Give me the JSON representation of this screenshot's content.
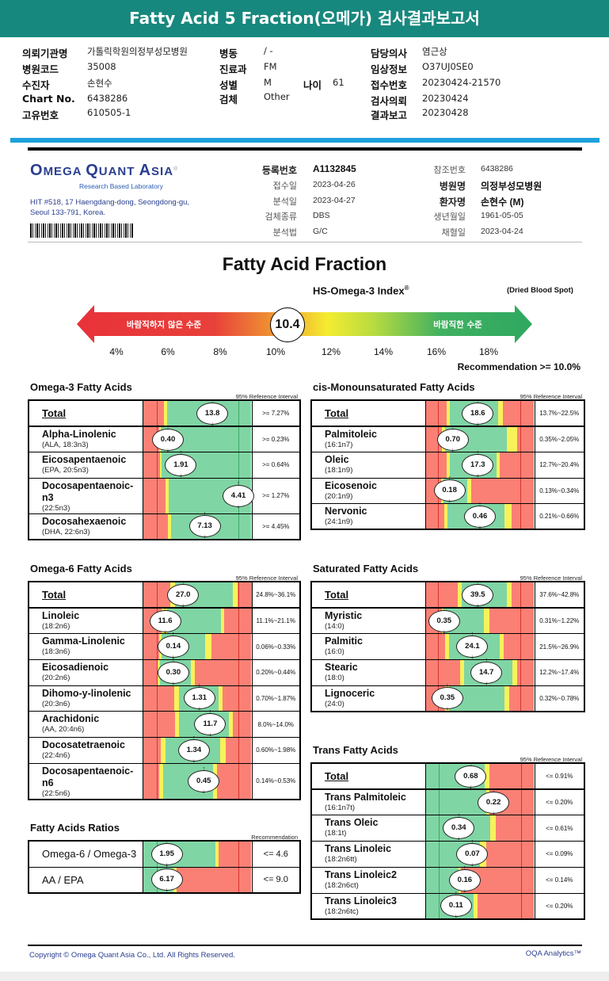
{
  "title": "Fatty Acid 5 Fraction(오메가) 검사결과보고서",
  "patient": {
    "col1": [
      [
        "의뢰기관명",
        "가톨릭학원의정부성모병원"
      ],
      [
        "병원코드",
        "35008"
      ],
      [
        "수진자",
        "손현수"
      ],
      [
        "Chart No.",
        "6438286"
      ],
      [
        "고유번호",
        "610505-1"
      ]
    ],
    "col2": [
      [
        "병동",
        "/ -"
      ],
      [
        "진료과",
        "FM"
      ],
      [
        "성별",
        "M"
      ],
      [
        "검체",
        "Other"
      ]
    ],
    "age": [
      "나이",
      "61"
    ],
    "col3": [
      [
        "담당의사",
        "염근상"
      ],
      [
        "임상정보",
        "O37UJ0SE0"
      ],
      [
        "접수번호",
        "20230424-21570"
      ],
      [
        "검사의뢰",
        "20230424"
      ],
      [
        "결과보고",
        "20230428"
      ]
    ]
  },
  "lab": {
    "logo": "OMEGA QUANT ASIA",
    "logo_sub": "Research Based Laboratory",
    "address1": "HIT #518, 17 Haengdang-dong, Seongdong-gu,",
    "address2": "Seoul 133-791, Korea."
  },
  "report_info": {
    "left": [
      [
        "등록번호",
        "A1132845"
      ],
      [
        "접수일",
        "2023-04-26"
      ],
      [
        "분석일",
        "2023-04-27"
      ],
      [
        "검체종류",
        "DBS"
      ],
      [
        "분석법",
        "G/C"
      ]
    ],
    "right": [
      [
        "참조번호",
        "6438286"
      ],
      [
        "병원명",
        "의정부성모병원"
      ],
      [
        "환자명",
        "손현수 (M)"
      ],
      [
        "생년월일",
        "1961-05-05"
      ],
      [
        "채혈일",
        "2023-04-24"
      ]
    ]
  },
  "fraction_title": "Fatty Acid Fraction",
  "index": {
    "title": "HS-Omega-3 Index",
    "sup": "®",
    "sample": "(Dried Blood Spot)",
    "value": "10.4",
    "left_label": "바람직하지 않은 수준",
    "right_label": "바람직한 수준",
    "ticks": [
      "4%",
      "6%",
      "8%",
      "10%",
      "12%",
      "14%",
      "16%",
      "18%"
    ],
    "recommendation": "Recommendation  >= 10.0%"
  },
  "colors": {
    "header": "#17887e",
    "red": "#fa8075",
    "yellow": "#f7f25a",
    "green": "#80d5a4"
  },
  "sections": [
    {
      "title": "Omega-3 Fatty Acids",
      "ref_label": "95% Reference Interval",
      "rows": [
        {
          "name": "Total",
          "sub": "",
          "value": "13.8",
          "ref": ">= 7.27%"
        },
        {
          "name": "Alpha-Linolenic",
          "sub": "(ALA, 18:3n3)",
          "value": "0.40",
          "ref": ">= 0.23%"
        },
        {
          "name": "Eicosapentaenoic",
          "sub": "(EPA, 20:5n3)",
          "value": "1.91",
          "ref": ">= 0.64%"
        },
        {
          "name": "Docosapentaenoic-n3",
          "sub": "(22:5n3)",
          "value": "4.41",
          "ref": ">= 1.27%"
        },
        {
          "name": "Docosahexaenoic",
          "sub": "(DHA, 22:6n3)",
          "value": "7.13",
          "ref": ">= 4.45%"
        }
      ]
    },
    {
      "title": "cis-Monounsaturated Fatty Acids",
      "ref_label": "95% Reference Interval",
      "rows": [
        {
          "name": "Total",
          "sub": "",
          "value": "18.6",
          "ref": "13.7%~22.5%"
        },
        {
          "name": "Palmitoleic",
          "sub": "(16:1n7)",
          "value": "0.70",
          "ref": "0.35%~2.05%"
        },
        {
          "name": "Oleic",
          "sub": "(18:1n9)",
          "value": "17.3",
          "ref": "12.7%~20.4%"
        },
        {
          "name": "Eicosenoic",
          "sub": "(20:1n9)",
          "value": "0.18",
          "ref": "0.13%~0.34%"
        },
        {
          "name": "Nervonic",
          "sub": "(24:1n9)",
          "value": "0.46",
          "ref": "0.21%~0.66%"
        }
      ]
    },
    {
      "title": "Omega-6 Fatty Acids",
      "ref_label": "95% Reference Interval",
      "rows": [
        {
          "name": "Total",
          "sub": "",
          "value": "27.0",
          "ref": "24.8%~36.1%"
        },
        {
          "name": "Linoleic",
          "sub": "(18:2n6)",
          "value": "11.6",
          "ref": "11.1%~21.1%"
        },
        {
          "name": "Gamma-Linolenic",
          "sub": "(18:3n6)",
          "value": "0.14",
          "ref": "0.06%~0.33%"
        },
        {
          "name": "Eicosadienoic",
          "sub": "(20:2n6)",
          "value": "0.30",
          "ref": "0.20%~0.44%"
        },
        {
          "name": "Dihomo-y-linolenic",
          "sub": "(20:3n6)",
          "value": "1.31",
          "ref": "0.70%~1.87%"
        },
        {
          "name": "Arachidonic",
          "sub": "(AA, 20:4n6)",
          "value": "11.7",
          "ref": "8.0%~14.0%"
        },
        {
          "name": "Docosatetraenoic",
          "sub": "(22:4n6)",
          "value": "1.34",
          "ref": "0.60%~1.98%"
        },
        {
          "name": "Docosapentaenoic-n6",
          "sub": "(22:5n6)",
          "value": "0.45",
          "ref": "0.14%~0.53%"
        }
      ]
    },
    {
      "title": "Saturated Fatty Acids",
      "ref_label": "95% Reference Interval",
      "rows": [
        {
          "name": "Total",
          "sub": "",
          "value": "39.5",
          "ref": "37.6%~42.8%"
        },
        {
          "name": "Myristic",
          "sub": "(14:0)",
          "value": "0.35",
          "ref": "0.31%~1.22%"
        },
        {
          "name": "Palmitic",
          "sub": "(16:0)",
          "value": "24.1",
          "ref": "21.5%~26.9%"
        },
        {
          "name": "Stearic",
          "sub": "(18:0)",
          "value": "14.7",
          "ref": "12.2%~17.4%"
        },
        {
          "name": "Lignoceric",
          "sub": "(24:0)",
          "value": "0.35",
          "ref": "0.32%~0.78%"
        }
      ]
    },
    {
      "title": "Trans Fatty Acids",
      "ref_label": "95% Reference Interval",
      "rows": [
        {
          "name": "Total",
          "sub": "",
          "value": "0.68",
          "ref": "<= 0.91%"
        },
        {
          "name": "Trans Palmitoleic",
          "sub": "(16:1n7t)",
          "value": "0.22",
          "ref": "<= 0.20%"
        },
        {
          "name": "Trans Oleic",
          "sub": "(18:1t)",
          "value": "0.34",
          "ref": "<= 0.61%"
        },
        {
          "name": "Trans Linoleic",
          "sub": "(18:2n6tt)",
          "value": "0.07",
          "ref": "<= 0.09%"
        },
        {
          "name": "Trans Linoleic2",
          "sub": "(18:2n6ct)",
          "value": "0.16",
          "ref": "<= 0.14%"
        },
        {
          "name": "Trans Linoleic3",
          "sub": "(18:2n6tc)",
          "value": "0.11",
          "ref": "<= 0.20%"
        }
      ]
    },
    {
      "title": "Fatty Acids Ratios",
      "ref_label": "Recommendation",
      "rows": [
        {
          "name": "Omega-6 / Omega-3",
          "sub": "",
          "value": "1.95",
          "ref": "<= 4.6"
        },
        {
          "name": "AA / EPA",
          "sub": "",
          "value": "6.17",
          "ref": "<= 9.0"
        }
      ]
    }
  ],
  "footer": {
    "copyright": "Copyright © Omega Quant Asia Co., Ltd.  All Rights Reserved.",
    "brand": "OQA Analytics™"
  }
}
